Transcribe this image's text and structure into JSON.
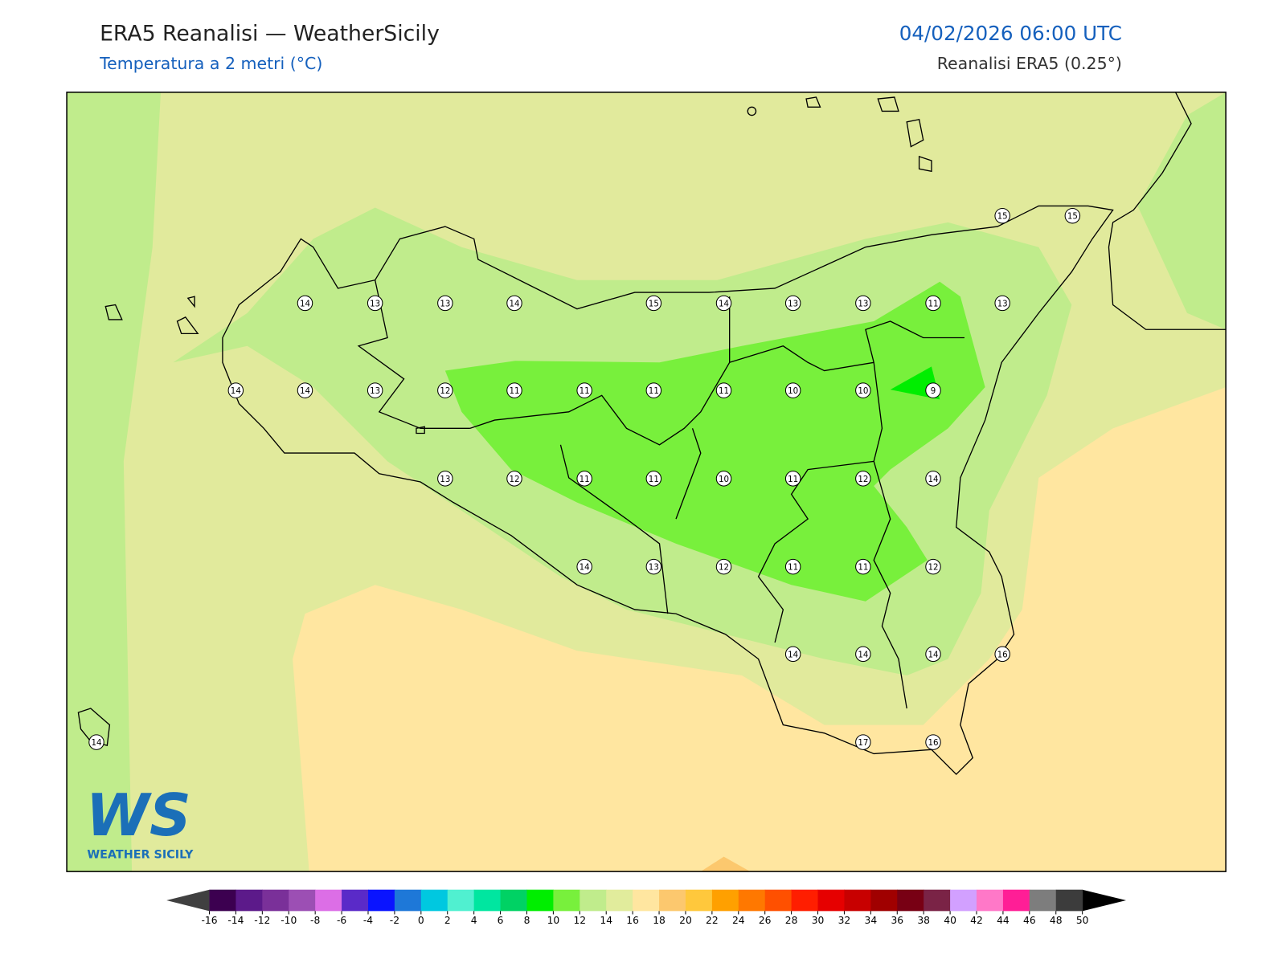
{
  "header": {
    "title": "ERA5 Reanalisi — WeatherSicily",
    "subtitle": "Temperatura a 2 metri (°C)",
    "datetime": "04/02/2026 06:00 UTC",
    "source": "Reanalisi ERA5 (0.25°)"
  },
  "stations": {
    "values": [
      15,
      15,
      14,
      13,
      13,
      14,
      15,
      14,
      13,
      13,
      11,
      13,
      14,
      14,
      13,
      12,
      11,
      11,
      11,
      11,
      10,
      10,
      9,
      13,
      12,
      11,
      11,
      10,
      11,
      12,
      14,
      14,
      13,
      12,
      11,
      11,
      12,
      14,
      14,
      14,
      16,
      14,
      17,
      16
    ]
  },
  "colorbar": {
    "ticks": [
      -16,
      -14,
      -12,
      -10,
      -8,
      -6,
      -4,
      -2,
      0,
      2,
      4,
      6,
      8,
      10,
      12,
      14,
      16,
      18,
      20,
      22,
      24,
      26,
      28,
      30,
      32,
      34,
      36,
      38,
      40,
      42,
      44,
      46,
      48,
      50
    ],
    "colors": [
      "#3c0050",
      "#5c1a8a",
      "#7a3099",
      "#9c4fb4",
      "#dc6ee6",
      "#5a2ac8",
      "#0a14ff",
      "#1e78d8",
      "#00c8e0",
      "#50f0d0",
      "#00e6a0",
      "#00d264",
      "#00ee00",
      "#78f03c",
      "#c0ec8c",
      "#e1ec9c",
      "#ffe6a0",
      "#fcc86e",
      "#ffc83c",
      "#ffa000",
      "#ff7800",
      "#ff5000",
      "#ff1e00",
      "#e60000",
      "#c80000",
      "#a00000",
      "#780014",
      "#7a2346",
      "#d2a0ff",
      "#ff78c8",
      "#ff1e96",
      "#7d7d7d",
      "#3c3c3c"
    ],
    "under_color": "#404040",
    "over_color": "#000000"
  },
  "logo": {
    "letters": "WS",
    "text": "WEATHER SICILY"
  }
}
